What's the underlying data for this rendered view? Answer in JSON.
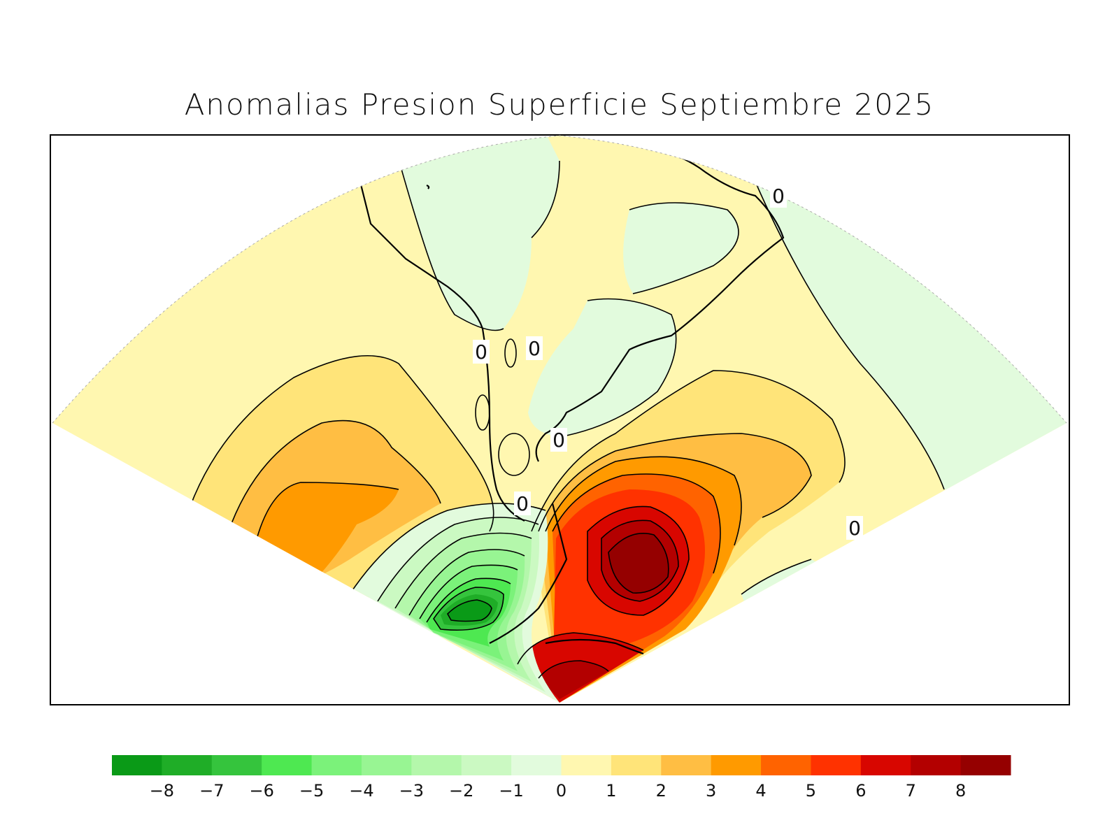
{
  "title": "Anomalias Presion Superficie Septiembre 2025",
  "contour_labels": [
    "0",
    "0",
    "0",
    "0",
    "0",
    "0"
  ],
  "colorbar": {
    "colors": [
      "#0a9a17",
      "#1fad27",
      "#35c43d",
      "#4ee851",
      "#7bf27a",
      "#98f593",
      "#b4f7ab",
      "#cbf9c2",
      "#e2fbdd",
      "#fff7b0",
      "#ffe479",
      "#ffbe43",
      "#ff9a00",
      "#ff6300",
      "#ff3200",
      "#d80600",
      "#b30000",
      "#950000"
    ],
    "labels": [
      "−8",
      "−7",
      "−6",
      "−5",
      "−4",
      "−3",
      "−2",
      "−1",
      "0",
      "1",
      "2",
      "3",
      "4",
      "5",
      "6",
      "7",
      "8"
    ]
  },
  "fill_colors": {
    "neg_light": "#e2fbdd",
    "neg_2": "#cbf9c2",
    "neg_3": "#b4f7ab",
    "neg_4": "#98f593",
    "neg_5": "#7bf27a",
    "neg_6": "#4ee851",
    "neg_7": "#35c43d",
    "neg_8": "#1fad27",
    "pos_1": "#fff7b0",
    "pos_2": "#ffe479",
    "pos_3": "#ffbe43",
    "pos_4": "#ff9a00",
    "pos_5": "#ff6300",
    "pos_6": "#ff3200",
    "pos_7": "#d80600",
    "pos_8": "#b30000",
    "pos_9": "#950000"
  }
}
